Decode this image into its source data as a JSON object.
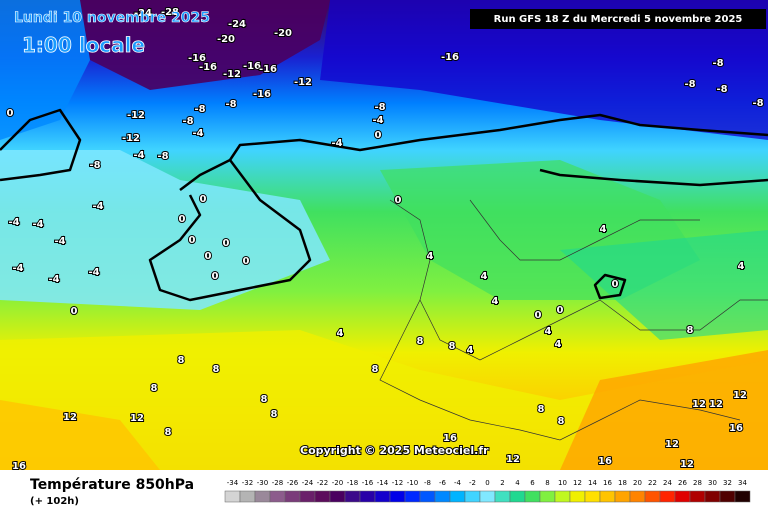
{
  "header": {
    "date": "Lundi 10 novembre 2025",
    "time": "1:00 locale",
    "run": "Run GFS 18 Z du Mercredi 5 novembre 2025"
  },
  "map": {
    "copyright": "Copyright © 2025 Meteociel.fr",
    "labels": [
      -24,
      -28,
      -24,
      -20,
      -20,
      -16,
      -16,
      -12,
      -16,
      -16,
      -12,
      -16,
      -16,
      -8,
      -8,
      -8,
      -8,
      -12,
      -8,
      -8,
      -8,
      -4,
      -12,
      -8,
      -4,
      -8,
      -8,
      -4,
      -4,
      0,
      0,
      -4,
      -4,
      -4,
      -4,
      -4,
      -4,
      -4,
      0,
      0,
      0,
      0,
      0,
      0,
      0,
      0,
      0,
      4,
      4,
      4,
      4,
      4,
      0,
      0,
      0,
      4,
      8,
      8,
      4,
      4,
      4,
      8,
      8,
      8,
      8,
      8,
      8,
      12,
      12,
      8,
      8,
      16,
      16,
      12,
      16,
      12,
      12,
      12,
      12,
      12,
      16,
      8,
      8
    ]
  },
  "legend": {
    "title": "Température 850hPa",
    "subtitle": "(+ 102h)",
    "values": [
      -34,
      -32,
      -30,
      -28,
      -26,
      -24,
      -22,
      -20,
      -18,
      -16,
      -14,
      -12,
      -10,
      -8,
      -6,
      -4,
      -2,
      0,
      2,
      4,
      6,
      8,
      10,
      12,
      14,
      16,
      18,
      20,
      22,
      24,
      26,
      28,
      30,
      32,
      34
    ],
    "colors": [
      "#d4d4d4",
      "#b4b4b4",
      "#9a889a",
      "#8c5c8c",
      "#7a3c7a",
      "#6a206a",
      "#5c0c5c",
      "#4a0060",
      "#3c0a8a",
      "#2800a8",
      "#1400cc",
      "#0000e8",
      "#0028ff",
      "#0058ff",
      "#0088ff",
      "#00b4ff",
      "#40d4ff",
      "#80e8ff",
      "#40e0c0",
      "#20d890",
      "#40e060",
      "#80f040",
      "#c0f820",
      "#f0f000",
      "#ffe000",
      "#ffc400",
      "#ffa400",
      "#ff8400",
      "#ff5400",
      "#ff2400",
      "#e00000",
      "#b00000",
      "#800000",
      "#500000",
      "#200000"
    ]
  }
}
